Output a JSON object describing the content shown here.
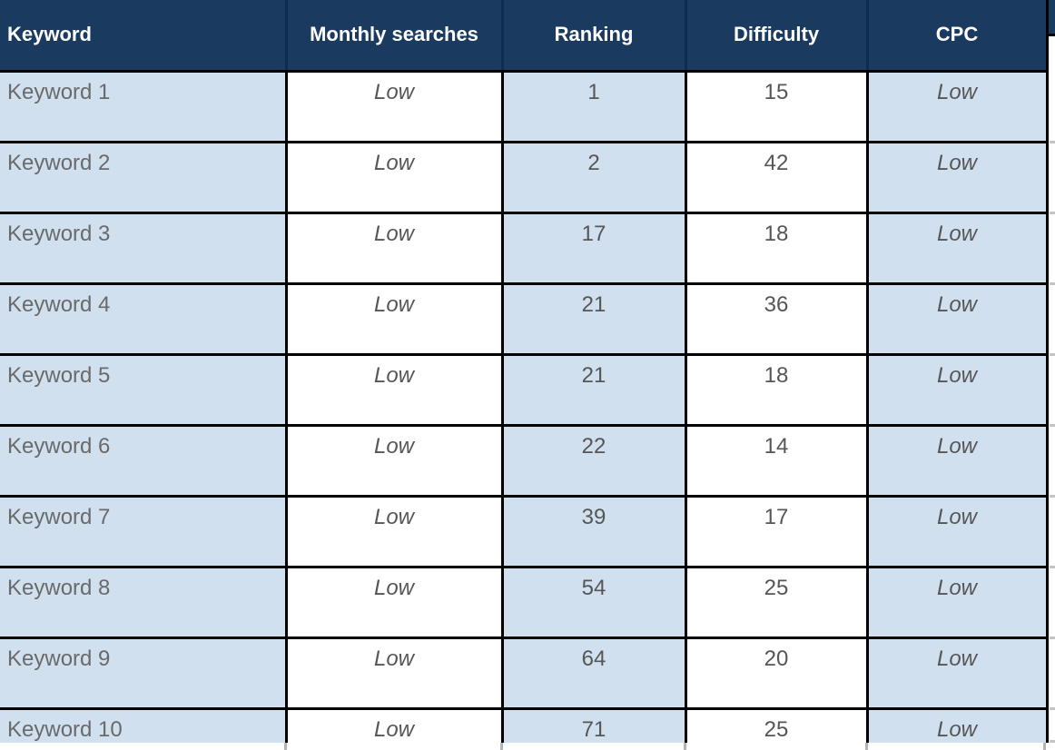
{
  "table": {
    "columns": [
      {
        "label": "Keyword"
      },
      {
        "label": "Monthly searches"
      },
      {
        "label": "Ranking"
      },
      {
        "label": "Difficulty"
      },
      {
        "label": "CPC"
      }
    ],
    "rows": [
      {
        "keyword": "Keyword 1",
        "monthly_searches": "Low",
        "ranking": "1",
        "difficulty": "15",
        "cpc": "Low"
      },
      {
        "keyword": "Keyword 2",
        "monthly_searches": "Low",
        "ranking": "2",
        "difficulty": "42",
        "cpc": "Low"
      },
      {
        "keyword": "Keyword 3",
        "monthly_searches": "Low",
        "ranking": "17",
        "difficulty": "18",
        "cpc": "Low"
      },
      {
        "keyword": "Keyword 4",
        "monthly_searches": "Low",
        "ranking": "21",
        "difficulty": "36",
        "cpc": "Low"
      },
      {
        "keyword": "Keyword 5",
        "monthly_searches": "Low",
        "ranking": "21",
        "difficulty": "18",
        "cpc": "Low"
      },
      {
        "keyword": "Keyword 6",
        "monthly_searches": "Low",
        "ranking": "22",
        "difficulty": "14",
        "cpc": "Low"
      },
      {
        "keyword": "Keyword 7",
        "monthly_searches": "Low",
        "ranking": "39",
        "difficulty": "17",
        "cpc": "Low"
      },
      {
        "keyword": "Keyword 8",
        "monthly_searches": "Low",
        "ranking": "54",
        "difficulty": "25",
        "cpc": "Low"
      },
      {
        "keyword": "Keyword 9",
        "monthly_searches": "Low",
        "ranking": "64",
        "difficulty": "20",
        "cpc": "Low"
      },
      {
        "keyword": "Keyword 10",
        "monthly_searches": "Low",
        "ranking": "71",
        "difficulty": "25",
        "cpc": "Low"
      }
    ]
  },
  "colors": {
    "header_bg": "#1a3a60",
    "header_divider": "#0f2c4e",
    "header_text": "#ffffff",
    "stripe_blue": "#d1e0ef",
    "grid_border": "#000000",
    "keyword_text": "#6a6a6a",
    "value_text": "#565656"
  }
}
